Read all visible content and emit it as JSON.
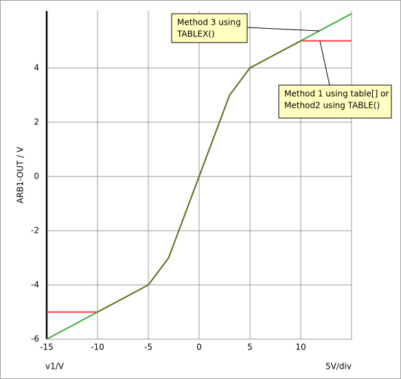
{
  "chart_data": {
    "type": "line",
    "ylabel": "ARB1-OUT / V",
    "xlabel": "v1/V",
    "x_scale_label": "5V/div",
    "xlim": [
      -15,
      15
    ],
    "ylim": [
      -6,
      6.1
    ],
    "xticks": [
      -15,
      -10,
      -5,
      0,
      5,
      10
    ],
    "yticks": [
      -6,
      -4,
      -2,
      0,
      2,
      4
    ],
    "grid": true,
    "series": [
      {
        "color": "#ff3b3b",
        "x": [
          -15,
          -10,
          0,
          10,
          15
        ],
        "values": [
          -5,
          -5,
          null,
          5,
          5
        ]
      },
      {
        "color": "#3caa3c",
        "x": [
          -15,
          -10,
          0,
          10,
          15
        ],
        "values": [
          -6,
          -5,
          null,
          5,
          6
        ]
      },
      {
        "color": "#5a6b1a",
        "x": [
          -10,
          -5,
          -3,
          0,
          3,
          5,
          10
        ],
        "values": [
          -5,
          -4,
          -3,
          0,
          3,
          4,
          5
        ]
      }
    ],
    "annotations": [
      {
        "lines": [
          "Method 3 using",
          "TABLEX()"
        ]
      },
      {
        "lines": [
          "Method 1 using table[] or",
          "Method2 using TABLE()"
        ]
      }
    ]
  }
}
